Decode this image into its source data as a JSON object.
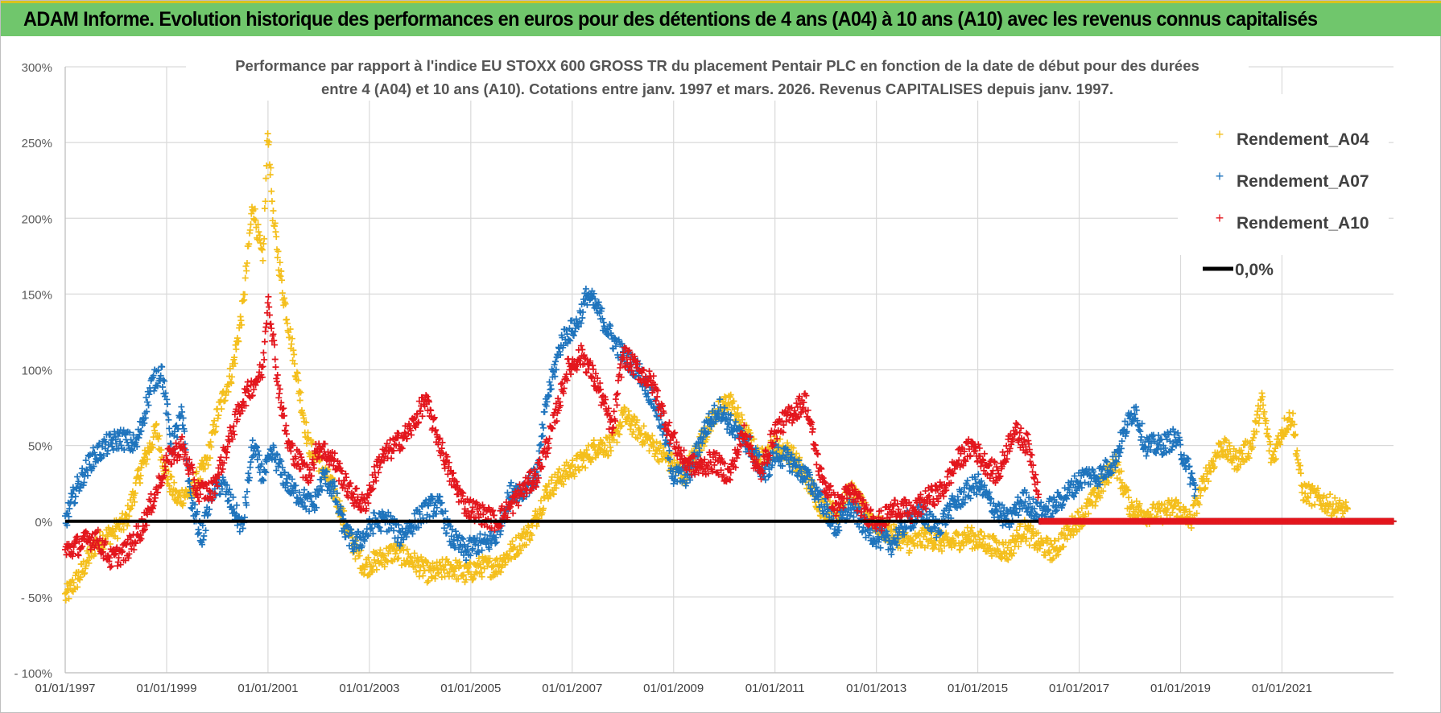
{
  "header": {
    "banner_title": "ADAM Informe. Evolution historique des performances en euros pour des détentions de 4 ans (A04) à 10 ans (A10) avec les revenus connus capitalisés"
  },
  "colors": {
    "banner_bg": "#70c66c",
    "banner_accent": "#d9c21f",
    "A04": "#f4bf1c",
    "A07": "#1f74bd",
    "A10": "#e3161d",
    "zero_line": "#000000",
    "grid": "#d9d9d9"
  },
  "chart_data": {
    "type": "scatter",
    "title_lines": [
      "Performance par rapport à l'indice EU STOXX 600 GROSS TR  du placement Pentair PLC en fonction de la date de début pour des durées",
      "entre 4 (A04) et 10 ans (A10). Cotations entre janv. 1997 et mars. 2026. Revenus CAPITALISES depuis janv. 1997."
    ],
    "x_axis": {
      "type": "date",
      "min": 1997.0,
      "max": 2023.2
    },
    "x_tick_labels": [
      "01/01/1997",
      "01/01/1999",
      "01/01/2001",
      "01/01/2003",
      "01/01/2005",
      "01/01/2007",
      "01/01/2009",
      "01/01/2011",
      "01/01/2013",
      "01/01/2015",
      "01/01/2017",
      "01/01/2019",
      "01/01/2021"
    ],
    "x_tick_values": [
      1997,
      1999,
      2001,
      2003,
      2005,
      2007,
      2009,
      2011,
      2013,
      2015,
      2017,
      2019,
      2021
    ],
    "y_axis": {
      "min": -100,
      "max": 300,
      "step": 50,
      "unit": "%"
    },
    "y_tick_labels": [
      "- 100%",
      "- 50%",
      "0%",
      "50%",
      "100%",
      "150%",
      "200%",
      "250%",
      "300%"
    ],
    "y_tick_values": [
      -100,
      -50,
      0,
      50,
      100,
      150,
      200,
      250,
      300
    ],
    "legend": {
      "position": "top-right",
      "entries": [
        {
          "label": "Rendement_A04",
          "marker": "+"
        },
        {
          "label": "Rendement_A07",
          "marker": "+"
        },
        {
          "label": "Rendement_A10",
          "marker": "+"
        },
        {
          "label": "0,0%",
          "marker": "line"
        }
      ]
    },
    "reference_line": {
      "value": 0,
      "label": "0,0%"
    },
    "series": [
      {
        "name": "Rendement_A04",
        "end": 2022.3,
        "points": [
          [
            1997.0,
            -50
          ],
          [
            1997.3,
            -35
          ],
          [
            1997.6,
            -15
          ],
          [
            1997.9,
            -8
          ],
          [
            1998.2,
            0
          ],
          [
            1998.5,
            35
          ],
          [
            1998.8,
            60
          ],
          [
            1999.0,
            30
          ],
          [
            1999.2,
            15
          ],
          [
            1999.5,
            20
          ],
          [
            1999.8,
            40
          ],
          [
            2000.0,
            70
          ],
          [
            2000.3,
            100
          ],
          [
            2000.5,
            140
          ],
          [
            2000.7,
            210
          ],
          [
            2000.9,
            170
          ],
          [
            2001.0,
            260
          ],
          [
            2001.1,
            200
          ],
          [
            2001.3,
            150
          ],
          [
            2001.5,
            110
          ],
          [
            2001.8,
            50
          ],
          [
            2002.0,
            40
          ],
          [
            2002.3,
            20
          ],
          [
            2002.6,
            -10
          ],
          [
            2002.9,
            -30
          ],
          [
            2003.2,
            -25
          ],
          [
            2003.5,
            -20
          ],
          [
            2003.8,
            -25
          ],
          [
            2004.2,
            -35
          ],
          [
            2004.6,
            -30
          ],
          [
            2004.9,
            -35
          ],
          [
            2005.2,
            -30
          ],
          [
            2005.5,
            -30
          ],
          [
            2005.8,
            -20
          ],
          [
            2006.2,
            -5
          ],
          [
            2006.5,
            20
          ],
          [
            2006.8,
            30
          ],
          [
            2007.2,
            40
          ],
          [
            2007.5,
            50
          ],
          [
            2007.8,
            50
          ],
          [
            2008.0,
            70
          ],
          [
            2008.3,
            60
          ],
          [
            2008.6,
            50
          ],
          [
            2008.9,
            40
          ],
          [
            2009.2,
            30
          ],
          [
            2009.5,
            50
          ],
          [
            2009.8,
            70
          ],
          [
            2010.1,
            80
          ],
          [
            2010.4,
            60
          ],
          [
            2010.7,
            40
          ],
          [
            2011.0,
            50
          ],
          [
            2011.3,
            45
          ],
          [
            2011.6,
            30
          ],
          [
            2011.9,
            10
          ],
          [
            2012.2,
            5
          ],
          [
            2012.5,
            20
          ],
          [
            2012.8,
            5
          ],
          [
            2013.1,
            -5
          ],
          [
            2013.4,
            -10
          ],
          [
            2013.7,
            -15
          ],
          [
            2014.0,
            -10
          ],
          [
            2014.4,
            -15
          ],
          [
            2014.8,
            -10
          ],
          [
            2015.2,
            -15
          ],
          [
            2015.6,
            -20
          ],
          [
            2015.9,
            -5
          ],
          [
            2016.2,
            -15
          ],
          [
            2016.5,
            -20
          ],
          [
            2016.8,
            -5
          ],
          [
            2017.1,
            5
          ],
          [
            2017.4,
            20
          ],
          [
            2017.7,
            40
          ],
          [
            2018.0,
            10
          ],
          [
            2018.3,
            5
          ],
          [
            2018.6,
            5
          ],
          [
            2018.9,
            10
          ],
          [
            2019.2,
            0
          ],
          [
            2019.5,
            30
          ],
          [
            2019.8,
            50
          ],
          [
            2020.1,
            40
          ],
          [
            2020.4,
            50
          ],
          [
            2020.6,
            80
          ],
          [
            2020.8,
            40
          ],
          [
            2021.0,
            60
          ],
          [
            2021.2,
            70
          ],
          [
            2021.4,
            20
          ],
          [
            2021.7,
            15
          ],
          [
            2022.0,
            10
          ],
          [
            2022.3,
            5
          ]
        ]
      },
      {
        "name": "Rendement_A07",
        "end": 2019.3,
        "points": [
          [
            1997.0,
            0
          ],
          [
            1997.2,
            20
          ],
          [
            1997.5,
            40
          ],
          [
            1997.8,
            50
          ],
          [
            1998.1,
            55
          ],
          [
            1998.4,
            50
          ],
          [
            1998.7,
            90
          ],
          [
            1998.9,
            100
          ],
          [
            1999.1,
            50
          ],
          [
            1999.3,
            70
          ],
          [
            1999.5,
            10
          ],
          [
            1999.7,
            -10
          ],
          [
            1999.9,
            20
          ],
          [
            2000.1,
            25
          ],
          [
            2000.3,
            10
          ],
          [
            2000.5,
            -5
          ],
          [
            2000.7,
            50
          ],
          [
            2000.9,
            30
          ],
          [
            2001.1,
            45
          ],
          [
            2001.3,
            30
          ],
          [
            2001.5,
            20
          ],
          [
            2001.7,
            15
          ],
          [
            2001.9,
            10
          ],
          [
            2002.1,
            30
          ],
          [
            2002.3,
            20
          ],
          [
            2002.5,
            -5
          ],
          [
            2002.7,
            -15
          ],
          [
            2002.9,
            -10
          ],
          [
            2003.1,
            0
          ],
          [
            2003.4,
            0
          ],
          [
            2003.6,
            -10
          ],
          [
            2003.9,
            0
          ],
          [
            2004.2,
            10
          ],
          [
            2004.4,
            10
          ],
          [
            2004.6,
            -10
          ],
          [
            2004.9,
            -20
          ],
          [
            2005.1,
            -15
          ],
          [
            2005.3,
            -15
          ],
          [
            2005.5,
            -10
          ],
          [
            2005.8,
            20
          ],
          [
            2006.0,
            20
          ],
          [
            2006.3,
            30
          ],
          [
            2006.5,
            80
          ],
          [
            2006.8,
            120
          ],
          [
            2007.1,
            130
          ],
          [
            2007.3,
            150
          ],
          [
            2007.5,
            140
          ],
          [
            2007.8,
            120
          ],
          [
            2008.0,
            110
          ],
          [
            2008.3,
            100
          ],
          [
            2008.6,
            80
          ],
          [
            2008.8,
            60
          ],
          [
            2009.0,
            30
          ],
          [
            2009.3,
            30
          ],
          [
            2009.6,
            60
          ],
          [
            2009.9,
            75
          ],
          [
            2010.2,
            60
          ],
          [
            2010.5,
            50
          ],
          [
            2010.8,
            30
          ],
          [
            2011.0,
            45
          ],
          [
            2011.3,
            40
          ],
          [
            2011.6,
            30
          ],
          [
            2011.9,
            15
          ],
          [
            2012.2,
            -5
          ],
          [
            2012.5,
            10
          ],
          [
            2012.8,
            -5
          ],
          [
            2013.0,
            -10
          ],
          [
            2013.3,
            -15
          ],
          [
            2013.6,
            0
          ],
          [
            2013.9,
            5
          ],
          [
            2014.2,
            -5
          ],
          [
            2014.5,
            10
          ],
          [
            2014.8,
            20
          ],
          [
            2015.0,
            25
          ],
          [
            2015.3,
            10
          ],
          [
            2015.6,
            0
          ],
          [
            2015.9,
            15
          ],
          [
            2016.2,
            5
          ],
          [
            2016.5,
            10
          ],
          [
            2016.8,
            20
          ],
          [
            2017.1,
            30
          ],
          [
            2017.4,
            30
          ],
          [
            2017.7,
            40
          ],
          [
            2017.9,
            60
          ],
          [
            2018.1,
            75
          ],
          [
            2018.3,
            50
          ],
          [
            2018.6,
            50
          ],
          [
            2018.9,
            55
          ],
          [
            2019.1,
            40
          ],
          [
            2019.3,
            20
          ]
        ]
      },
      {
        "name": "Rendement_A10",
        "end": 2016.2,
        "points": [
          [
            1997.0,
            -20
          ],
          [
            1997.3,
            -15
          ],
          [
            1997.6,
            -10
          ],
          [
            1997.9,
            -25
          ],
          [
            1998.2,
            -20
          ],
          [
            1998.5,
            -5
          ],
          [
            1998.8,
            20
          ],
          [
            1999.0,
            40
          ],
          [
            1999.3,
            50
          ],
          [
            1999.6,
            20
          ],
          [
            1999.9,
            20
          ],
          [
            2000.2,
            50
          ],
          [
            2000.5,
            80
          ],
          [
            2000.7,
            90
          ],
          [
            2000.9,
            100
          ],
          [
            2001.0,
            150
          ],
          [
            2001.2,
            90
          ],
          [
            2001.4,
            50
          ],
          [
            2001.6,
            40
          ],
          [
            2001.8,
            30
          ],
          [
            2002.0,
            50
          ],
          [
            2002.3,
            40
          ],
          [
            2002.6,
            20
          ],
          [
            2002.9,
            10
          ],
          [
            2003.2,
            40
          ],
          [
            2003.5,
            50
          ],
          [
            2003.8,
            60
          ],
          [
            2004.1,
            80
          ],
          [
            2004.3,
            60
          ],
          [
            2004.6,
            30
          ],
          [
            2004.9,
            10
          ],
          [
            2005.2,
            5
          ],
          [
            2005.5,
            0
          ],
          [
            2005.8,
            10
          ],
          [
            2006.0,
            20
          ],
          [
            2006.3,
            30
          ],
          [
            2006.6,
            60
          ],
          [
            2006.9,
            100
          ],
          [
            2007.2,
            110
          ],
          [
            2007.5,
            90
          ],
          [
            2007.8,
            60
          ],
          [
            2008.0,
            110
          ],
          [
            2008.3,
            100
          ],
          [
            2008.6,
            90
          ],
          [
            2008.9,
            60
          ],
          [
            2009.2,
            40
          ],
          [
            2009.5,
            35
          ],
          [
            2009.8,
            40
          ],
          [
            2010.1,
            30
          ],
          [
            2010.4,
            60
          ],
          [
            2010.7,
            30
          ],
          [
            2011.0,
            60
          ],
          [
            2011.3,
            70
          ],
          [
            2011.6,
            80
          ],
          [
            2011.9,
            30
          ],
          [
            2012.2,
            10
          ],
          [
            2012.5,
            20
          ],
          [
            2012.8,
            5
          ],
          [
            2013.1,
            0
          ],
          [
            2013.4,
            10
          ],
          [
            2013.7,
            5
          ],
          [
            2014.0,
            15
          ],
          [
            2014.3,
            20
          ],
          [
            2014.6,
            40
          ],
          [
            2014.9,
            50
          ],
          [
            2015.1,
            40
          ],
          [
            2015.4,
            30
          ],
          [
            2015.7,
            60
          ],
          [
            2016.0,
            50
          ],
          [
            2016.2,
            20
          ]
        ]
      }
    ]
  }
}
